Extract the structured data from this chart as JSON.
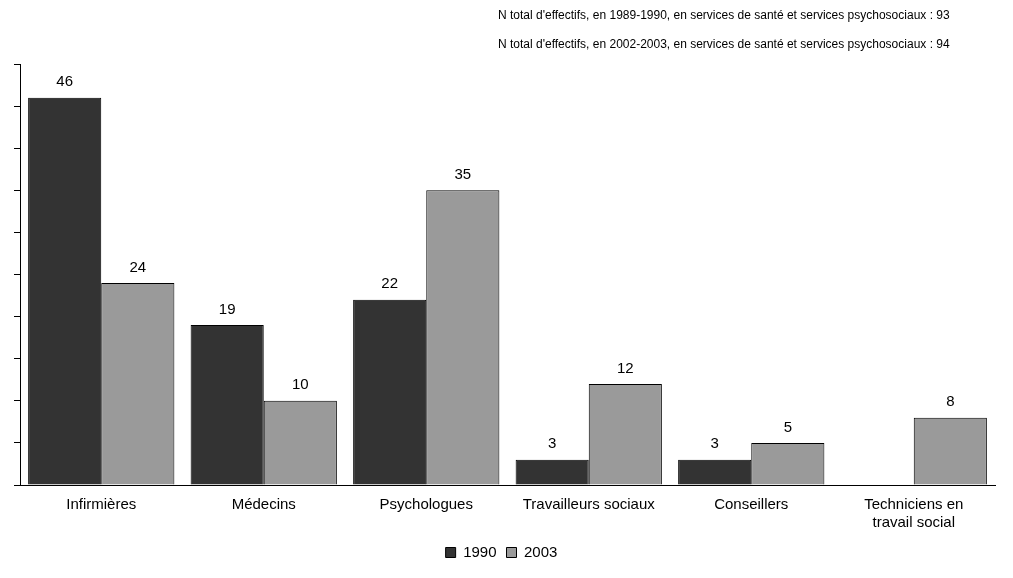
{
  "chart_data": {
    "type": "bar",
    "categories": [
      "Infirmières",
      "Médecins",
      "Psychologues",
      "Travailleurs sociaux",
      "Conseillers",
      "Techniciens en travail social"
    ],
    "series": [
      {
        "name": "1990",
        "color": "#333333",
        "values": [
          46,
          19,
          22,
          3,
          3,
          null
        ]
      },
      {
        "name": "2003",
        "color": "#9a9a9a",
        "values": [
          24,
          10,
          35,
          12,
          5,
          8
        ]
      }
    ],
    "ylim": [
      0,
      50
    ],
    "yticks": [
      {
        "value": 0,
        "label": null
      },
      {
        "value": 5,
        "label": null
      },
      {
        "value": 10,
        "label": null
      },
      {
        "value": 15,
        "label": null
      },
      {
        "value": 20,
        "label": null
      },
      {
        "value": 25,
        "label": null
      },
      {
        "value": 30,
        "label": null
      },
      {
        "value": 35,
        "label": null
      },
      {
        "value": 40,
        "label": null
      },
      {
        "value": 45,
        "label": null
      },
      {
        "value": 50,
        "label": null
      }
    ],
    "tick_labels": "x",
    "grid": false,
    "legend": "bottom",
    "data_labels": true,
    "annotations": [
      "N total d'effectifs, en 1989-1990, en services de santé et services psychosociaux : 93",
      "N total d'effectifs, en 2002-2003, en services de santé et services psychosociaux : 94"
    ]
  }
}
